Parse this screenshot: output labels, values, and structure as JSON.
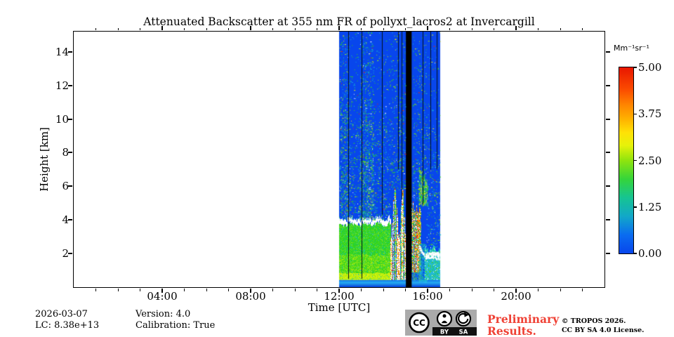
{
  "chart_data": {
    "type": "heatmap",
    "title": "Attenuated Backscatter at 355 nm FR of pollyxt_lacros2 at Invercargill",
    "xlabel": "Time [UTC]",
    "ylabel": "Height [km]",
    "xlim_hours": [
      0,
      24
    ],
    "ylim_km": [
      0,
      15.2
    ],
    "x_major_tick_hours": [
      4,
      8,
      12,
      16,
      20
    ],
    "x_tick_labels": [
      "04:00",
      "08:00",
      "12:00",
      "16:00",
      "20:00"
    ],
    "x_minor_tick_every_hours": 1,
    "y_major_tick_km": [
      2,
      4,
      6,
      8,
      10,
      12,
      14
    ],
    "grid": false,
    "colorbar": {
      "unit": "Mm⁻¹sr⁻¹",
      "vmin": 0.0,
      "vmax": 5.0,
      "tick_labels": [
        "5.00",
        "3.75",
        "2.50",
        "1.25",
        "0.00"
      ],
      "gradient_stops": [
        {
          "pos": 0.0,
          "color": "#0846ec"
        },
        {
          "pos": 0.1,
          "color": "#0a6cf0"
        },
        {
          "pos": 0.2,
          "color": "#12a8c8"
        },
        {
          "pos": 0.3,
          "color": "#16c492"
        },
        {
          "pos": 0.4,
          "color": "#35d53a"
        },
        {
          "pos": 0.5,
          "color": "#8fe40e"
        },
        {
          "pos": 0.58,
          "color": "#e6f20a"
        },
        {
          "pos": 0.65,
          "color": "#ffe106"
        },
        {
          "pos": 0.72,
          "color": "#ffb300"
        },
        {
          "pos": 0.8,
          "color": "#ff8400"
        },
        {
          "pos": 0.88,
          "color": "#fb4c00"
        },
        {
          "pos": 1.0,
          "color": "#e81600"
        }
      ]
    },
    "data_coverage_hours": [
      12.0,
      16.57
    ],
    "no_data_gap_hours": [
      15.02,
      15.28
    ],
    "profile_gap_lines": [
      {
        "hour": 12.4,
        "to_km": 0.5
      },
      {
        "hour": 13.02,
        "to_km": 0.5
      },
      {
        "hour": 13.95,
        "to_km": 4.3
      },
      {
        "hour": 14.68,
        "to_km": 7.0
      },
      {
        "hour": 14.84,
        "to_km": 5.2
      },
      {
        "hour": 15.78,
        "to_km": 4.9
      },
      {
        "hour": 16.12,
        "to_km": 7.0
      },
      {
        "hour": 16.4,
        "to_km": 7.0
      }
    ],
    "features": {
      "mixed_layer": {
        "hours": [
          12.0,
          14.32
        ],
        "top_km": 3.9
      },
      "convective_cells": {
        "hours": [
          14.32,
          15.02
        ],
        "top_km": 5.8
      },
      "precip_cloud": {
        "hours": [
          15.28,
          15.7
        ],
        "km": [
          0.9,
          4.9
        ]
      },
      "virga_streaks": {
        "hours": [
          15.6,
          16.0
        ],
        "km": [
          4.9,
          7.2
        ]
      },
      "drizzle_band": {
        "hours": [
          15.6,
          15.95
        ],
        "km": [
          0.3,
          2.6
        ]
      },
      "shallow_cloud": {
        "hours": [
          15.88,
          16.57
        ],
        "top_km": 2.3,
        "cloud_base_km": 1.9
      },
      "surface_band": {
        "hours": [
          12.0,
          16.57
        ],
        "km": [
          0,
          0.4
        ]
      }
    },
    "render": {
      "seed": 42,
      "palette": {
        "background": "#ffffff",
        "no_signal_blue": "#0846ec",
        "gap_black": "#000000",
        "line_dark": "#02101c",
        "white": "#ffffff",
        "greens": [
          "#2fd324",
          "#52da1d",
          "#7ae22a",
          "#19c87a"
        ],
        "yellow_greens": [
          "#a4e90e",
          "#c4ef10",
          "#e8f60a"
        ],
        "cyans": [
          "#18c0c8",
          "#1fb4dc",
          "#32cfc2"
        ],
        "oranges": [
          "#ff8c00",
          "#ffd40c"
        ],
        "reds": [
          "#ee2800",
          "#f03300"
        ]
      },
      "speckle": {
        "base_count": 2400,
        "clusters": [
          {
            "hours": [
              12.95,
              13.55
            ],
            "count": 650
          },
          {
            "hours": [
              12.02,
              12.4
            ],
            "count": 300
          }
        ]
      }
    }
  },
  "footer": {
    "date": "2026-03-07",
    "lc": "LC: 8.38e+13",
    "version": "Version: 4.0",
    "calibration": "Calibration: True",
    "preliminary": "Preliminary Results.",
    "preliminary_color": "#ef4135",
    "copyright1": "© TROPOS 2026.",
    "copyright2": "CC BY SA 4.0 License.",
    "badge": {
      "cc": "CC",
      "by": "BY",
      "sa": "SA",
      "bg_color": "#aaaaaa"
    }
  }
}
